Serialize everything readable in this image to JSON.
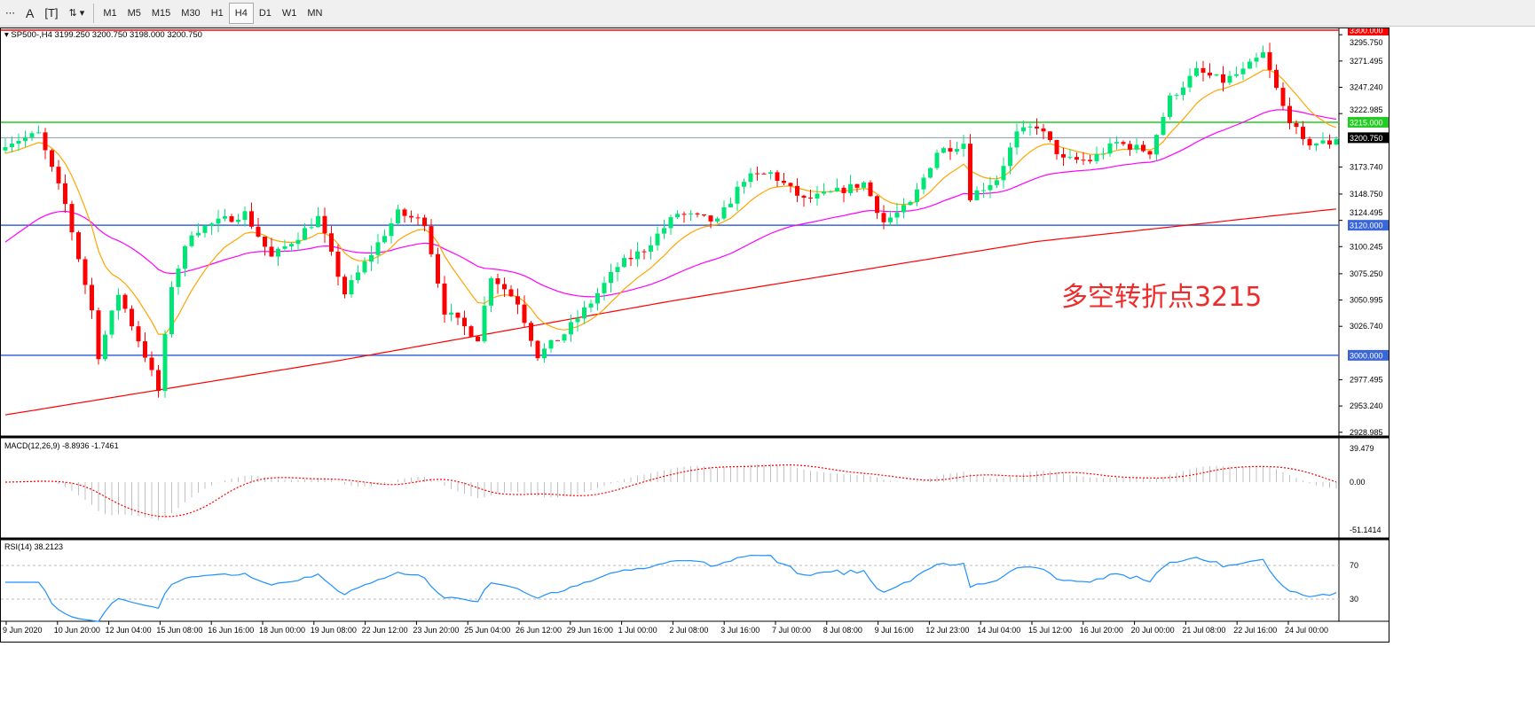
{
  "toolbar": {
    "tools": [
      "period-separators-icon",
      "text-icon",
      "text-label-icon",
      "arrows-icon"
    ],
    "timeframes": [
      "M1",
      "M5",
      "M15",
      "M30",
      "H1",
      "H4",
      "D1",
      "W1",
      "MN"
    ],
    "active_timeframe": "H4"
  },
  "chart": {
    "symbol_legend": "SP500-,H4  3199.250 3200.750 3198.000 3200.750",
    "annotation": "多空转折点3215",
    "price_axis": [
      "3295.750",
      "3271.495",
      "3247.240",
      "3222.985",
      "3173.740",
      "3148.750",
      "3124.495",
      "3100.245",
      "3075.250",
      "3050.995",
      "3026.740",
      "2977.495",
      "2953.240",
      "2928.985"
    ],
    "levels": [
      {
        "price": 3300,
        "label": "3300.000",
        "color": "#ff0000"
      },
      {
        "price": 3215,
        "label": "3215.000",
        "color": "#22cc22"
      },
      {
        "price": 3120,
        "label": "3120.000",
        "color": "#3a66d9"
      },
      {
        "price": 3000,
        "label": "3000.000",
        "color": "#3a66d9"
      }
    ],
    "current": {
      "price": 3200.75,
      "label": "3200.750"
    },
    "colors": {
      "bull": "#00e676",
      "bear": "#ff0000",
      "ma_fast": "#ffa500",
      "ma_mid": "#ff00ff",
      "ma_slow": "#ff0000"
    },
    "close_anchors": [
      [
        0,
        3196
      ],
      [
        5,
        3204
      ],
      [
        9,
        3139
      ],
      [
        13,
        3041
      ],
      [
        14,
        3000
      ],
      [
        17,
        3057
      ],
      [
        21,
        3000
      ],
      [
        23,
        2967
      ],
      [
        25,
        3065
      ],
      [
        28,
        3114
      ],
      [
        32,
        3123
      ],
      [
        36,
        3131
      ],
      [
        40,
        3090
      ],
      [
        44,
        3110
      ],
      [
        47,
        3127
      ],
      [
        51,
        3057
      ],
      [
        55,
        3094
      ],
      [
        59,
        3131
      ],
      [
        63,
        3123
      ],
      [
        66,
        3041
      ],
      [
        71,
        3016
      ],
      [
        73,
        3074
      ],
      [
        77,
        3049
      ],
      [
        80,
        3000
      ],
      [
        84,
        3020
      ],
      [
        88,
        3049
      ],
      [
        92,
        3082
      ],
      [
        96,
        3098
      ],
      [
        101,
        3131
      ],
      [
        107,
        3123
      ],
      [
        111,
        3163
      ],
      [
        115,
        3168
      ],
      [
        120,
        3143
      ],
      [
        125,
        3151
      ],
      [
        129,
        3159
      ],
      [
        132,
        3123
      ],
      [
        136,
        3139
      ],
      [
        140,
        3188
      ],
      [
        144,
        3196
      ],
      [
        145,
        3147
      ],
      [
        149,
        3163
      ],
      [
        152,
        3204
      ],
      [
        155,
        3212
      ],
      [
        159,
        3180
      ],
      [
        163,
        3180
      ],
      [
        167,
        3196
      ],
      [
        172,
        3188
      ],
      [
        175,
        3237
      ],
      [
        179,
        3262
      ],
      [
        183,
        3253
      ],
      [
        186,
        3262
      ],
      [
        189,
        3278
      ],
      [
        192,
        3229
      ],
      [
        195,
        3196
      ],
      [
        199,
        3196
      ],
      [
        200,
        3200.75
      ]
    ],
    "slow_ma_anchors": [
      [
        0,
        2945
      ],
      [
        50,
        2995
      ],
      [
        100,
        3050
      ],
      [
        155,
        3105
      ],
      [
        200,
        3135
      ]
    ]
  },
  "macd": {
    "label": "MACD(12,26,9) -8.8936 -1.7461",
    "axis": [
      "39.479",
      "0.00",
      "-51.1414"
    ]
  },
  "rsi": {
    "label": "RSI(14) 38.2123",
    "axis": [
      "70",
      "30"
    ]
  },
  "time_axis": [
    "9 Jun 2020",
    "10 Jun 20:00",
    "12 Jun 04:00",
    "15 Jun 08:00",
    "16 Jun 16:00",
    "18 Jun 00:00",
    "19 Jun 08:00",
    "22 Jun 12:00",
    "23 Jun 20:00",
    "25 Jun 04:00",
    "26 Jun 12:00",
    "29 Jun 16:00",
    "1 Jul 00:00",
    "2 Jul 08:00",
    "3 Jul 16:00",
    "7 Jul 00:00",
    "8 Jul 08:00",
    "9 Jul 16:00",
    "12 Jul 23:00",
    "14 Jul 04:00",
    "15 Jul 12:00",
    "16 Jul 20:00",
    "20 Jul 00:00",
    "21 Jul 08:00",
    "22 Jul 16:00",
    "24 Jul 00:00"
  ]
}
